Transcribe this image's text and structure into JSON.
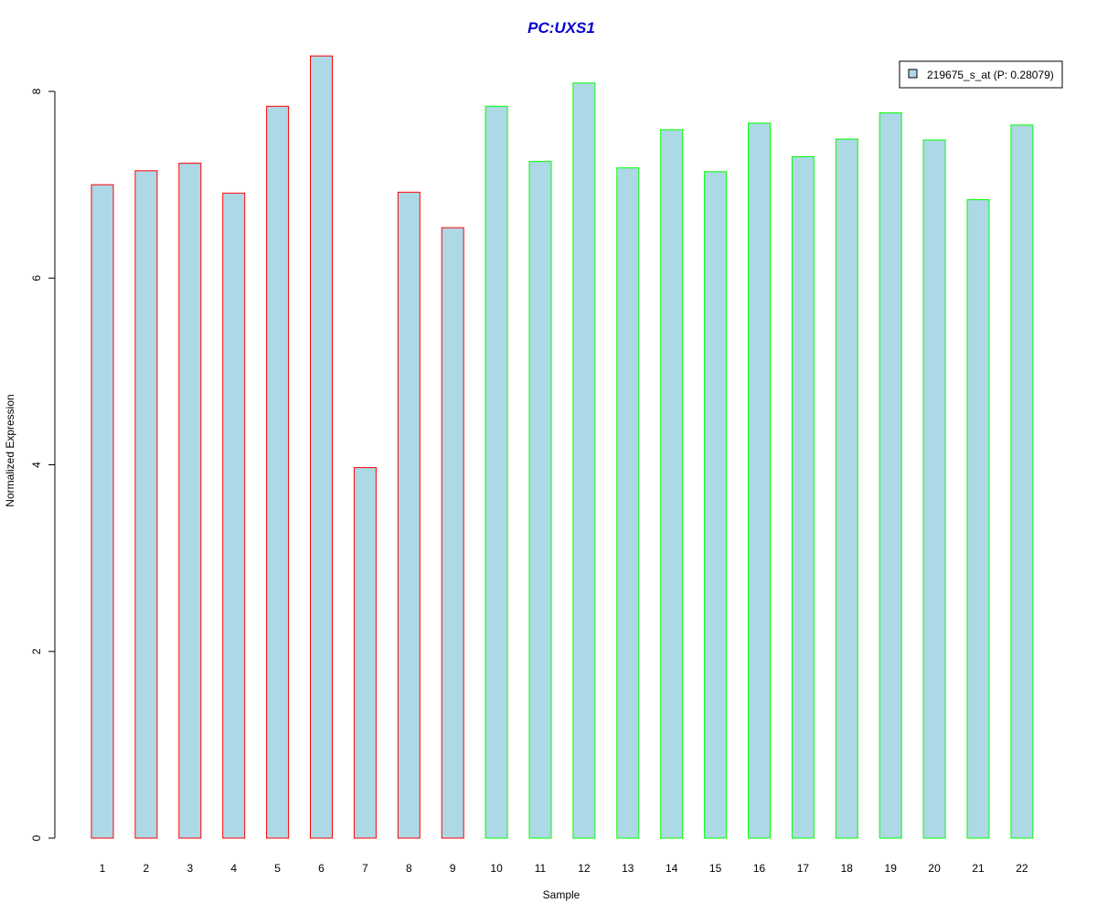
{
  "chart_data": {
    "type": "bar",
    "title": "PC:UXS1",
    "xlabel": "Sample",
    "ylabel": "Normalized Expression",
    "categories": [
      "1",
      "2",
      "3",
      "4",
      "5",
      "6",
      "7",
      "8",
      "9",
      "10",
      "11",
      "12",
      "13",
      "14",
      "15",
      "16",
      "17",
      "18",
      "19",
      "20",
      "21",
      "22"
    ],
    "series": [
      {
        "name": "219675_s_at (P: 0.28079)",
        "values": [
          7.0,
          7.15,
          7.23,
          6.91,
          7.84,
          8.38,
          3.97,
          6.92,
          6.54,
          7.84,
          7.25,
          8.09,
          7.18,
          7.59,
          7.14,
          7.66,
          7.3,
          7.49,
          7.77,
          7.48,
          6.84,
          7.64
        ]
      }
    ],
    "groups": [
      1,
      1,
      1,
      1,
      1,
      1,
      1,
      1,
      1,
      2,
      2,
      2,
      2,
      2,
      2,
      2,
      2,
      2,
      2,
      2,
      2,
      2
    ],
    "ylim": [
      0,
      8.4
    ],
    "yticks": [
      0,
      2,
      4,
      6,
      8
    ],
    "grid": false,
    "legend_position": "top-right",
    "colors": {
      "bar_fill": "#add8e6",
      "group1_border": "#ff0000",
      "group2_border": "#00ff00",
      "title": "#0000cd",
      "axis": "#000000"
    }
  }
}
